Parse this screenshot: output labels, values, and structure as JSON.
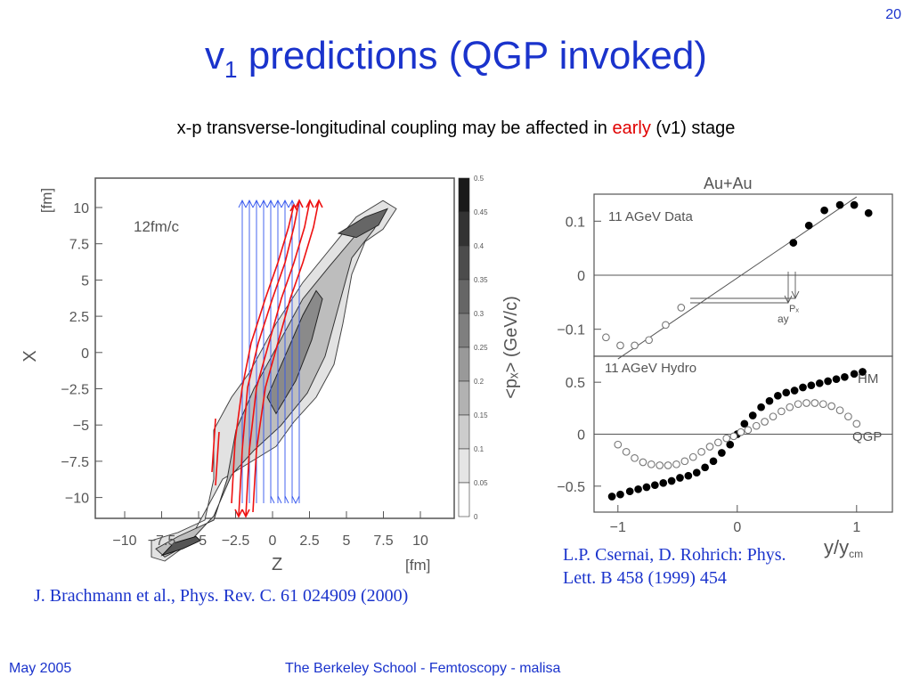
{
  "slide_number": "20",
  "title": {
    "main": "v",
    "sub": "1",
    "rest": " predictions (QGP invoked)"
  },
  "subtitle": {
    "before": "x-p transverse-longitudinal coupling may be affected in ",
    "highlight": "early",
    "after": " (v1) stage"
  },
  "left_figure": {
    "time_label": "12fm/c",
    "y_axis_label": "X",
    "y_unit": "[fm]",
    "x_axis_label": "Z",
    "x_unit": "[fm]",
    "y_ticks": [
      "10",
      "7.5",
      "5",
      "2.5",
      "0",
      "−2.5",
      "−5",
      "−7.5",
      "−10"
    ],
    "x_ticks": [
      "−10",
      "−7.5",
      "−5",
      "−2.5",
      "0",
      "2.5",
      "5",
      "7.5",
      "10"
    ],
    "colorbar_label": "<pₓ> (GeV/c)",
    "colorbar_ticks": [
      "0.5",
      "0.45",
      "0.4",
      "0.35",
      "0.3",
      "0.25",
      "0.2",
      "0.15",
      "0.1",
      "0.05",
      "0"
    ],
    "caption": "J. Brachmann et al., Phys. Rev. C. 61 024909 (2000)"
  },
  "right_figure": {
    "header": "Au+Au",
    "top_panel_label": "11 AGeV Data",
    "bottom_panel_label": "11 AGeV Hydro",
    "annotation_px": "Pₓ",
    "annotation_ay": "ay",
    "legend_hm": "HM",
    "legend_qgp": "QGP",
    "x_axis_label": "y/y",
    "x_axis_sub": "cm",
    "caption": "L.P. Csernai, D. Rohrich: Phys. Lett. B 458 (1999) 454"
  },
  "chart_data": [
    {
      "type": "scatter",
      "title": "11 AGeV Data",
      "xlabel": "y/ycm",
      "ylabel": "<px> (GeV/c)",
      "xlim": [
        -1.2,
        1.3
      ],
      "ylim": [
        -0.15,
        0.15
      ],
      "yticks": [
        -0.1,
        0,
        0.1
      ],
      "series": [
        {
          "name": "",
          "marker": "open",
          "x": [
            -1.1,
            -0.98,
            -0.86,
            -0.74,
            -0.6,
            -0.47
          ],
          "y": [
            -0.115,
            -0.13,
            -0.13,
            -0.12,
            -0.092,
            -0.06
          ]
        },
        {
          "name": "",
          "marker": "filled",
          "x": [
            0.47,
            0.6,
            0.73,
            0.86,
            0.98,
            1.1
          ],
          "y": [
            0.06,
            0.092,
            0.12,
            0.13,
            0.13,
            0.115
          ]
        }
      ],
      "fit_line": {
        "x": [
          -1.0,
          1.0
        ],
        "y": [
          -0.155,
          0.145
        ]
      }
    },
    {
      "type": "scatter",
      "title": "11 AGeV Hydro",
      "xlabel": "y/ycm",
      "ylabel": "<px> (GeV/c)",
      "xlim": [
        -1.2,
        1.3
      ],
      "ylim": [
        -0.75,
        0.75
      ],
      "xticks": [
        -1,
        0,
        1
      ],
      "yticks": [
        -0.5,
        0,
        0.5
      ],
      "series": [
        {
          "name": "HM",
          "marker": "filled",
          "x": [
            -1.05,
            -0.98,
            -0.9,
            -0.83,
            -0.76,
            -0.69,
            -0.62,
            -0.55,
            -0.48,
            -0.41,
            -0.34,
            -0.27,
            -0.2,
            -0.13,
            -0.06,
            0,
            0.06,
            0.13,
            0.2,
            0.27,
            0.34,
            0.41,
            0.48,
            0.55,
            0.62,
            0.69,
            0.76,
            0.83,
            0.9,
            0.98,
            1.05
          ],
          "y": [
            -0.6,
            -0.58,
            -0.55,
            -0.53,
            -0.51,
            -0.49,
            -0.47,
            -0.45,
            -0.42,
            -0.4,
            -0.37,
            -0.32,
            -0.26,
            -0.18,
            -0.1,
            0,
            0.1,
            0.18,
            0.26,
            0.32,
            0.37,
            0.4,
            0.42,
            0.45,
            0.47,
            0.49,
            0.51,
            0.53,
            0.55,
            0.58,
            0.6
          ]
        },
        {
          "name": "QGP",
          "marker": "open",
          "x": [
            -1.0,
            -0.93,
            -0.86,
            -0.79,
            -0.72,
            -0.65,
            -0.58,
            -0.51,
            -0.44,
            -0.37,
            -0.3,
            -0.23,
            -0.16,
            -0.09,
            -0.03,
            0.03,
            0.09,
            0.16,
            0.23,
            0.3,
            0.37,
            0.44,
            0.51,
            0.58,
            0.65,
            0.72,
            0.79,
            0.86,
            0.93,
            1.0
          ],
          "y": [
            -0.1,
            -0.17,
            -0.23,
            -0.27,
            -0.29,
            -0.3,
            -0.3,
            -0.29,
            -0.26,
            -0.22,
            -0.17,
            -0.12,
            -0.08,
            -0.04,
            -0.02,
            0.02,
            0.04,
            0.08,
            0.12,
            0.17,
            0.22,
            0.26,
            0.29,
            0.3,
            0.3,
            0.29,
            0.27,
            0.23,
            0.17,
            0.1
          ]
        }
      ]
    }
  ],
  "footer": {
    "date": "May 2005",
    "text": "The Berkeley School - Femtoscopy - malisa"
  }
}
